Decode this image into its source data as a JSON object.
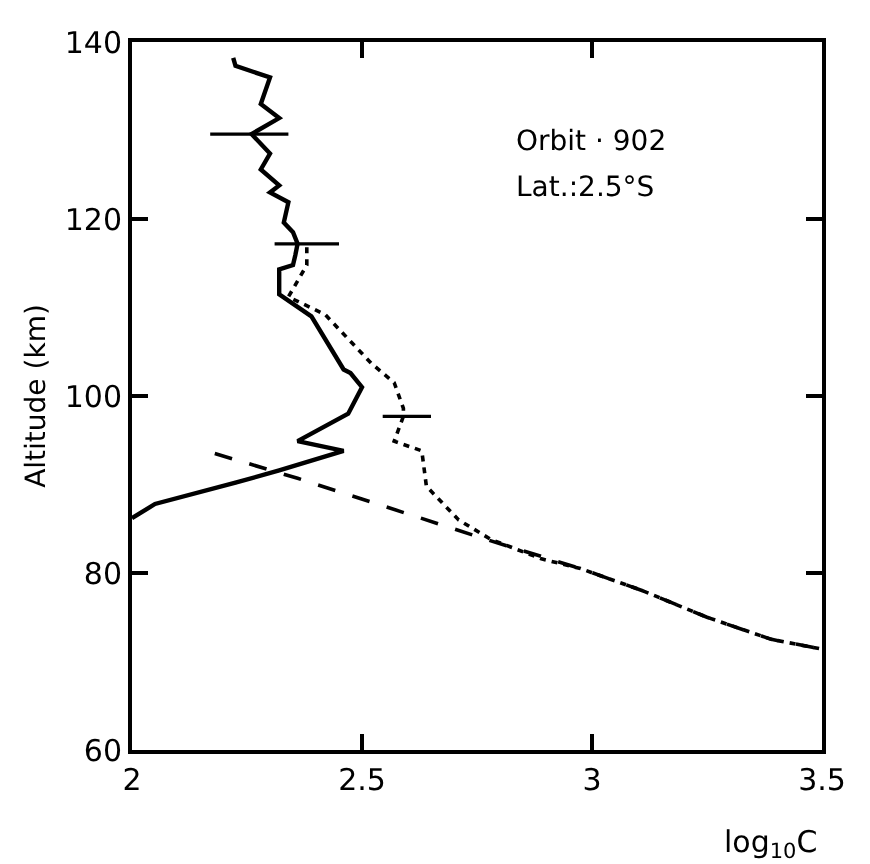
{
  "chart_data": {
    "type": "line",
    "xlabel": "log$_{10}$C",
    "ylabel": "Altitude (km)",
    "annotations": [
      "Orbit · 902",
      "Lat.:2.5°S"
    ],
    "xlim": [
      2,
      3.5
    ],
    "ylim": [
      60,
      140
    ],
    "xticks": [
      2,
      2.5,
      3,
      3.5
    ],
    "yticks": [
      60,
      80,
      100,
      120,
      140
    ],
    "series": [
      {
        "color": "#000000",
        "line_style": "solid",
        "x": [
          2.22,
          2.225,
          2.3,
          2.28,
          2.32,
          2.26,
          2.3,
          2.28,
          2.32,
          2.3,
          2.34,
          2.33,
          2.35,
          2.36,
          2.355,
          2.35,
          2.32,
          2.32,
          2.39,
          2.46,
          2.475,
          2.5,
          2.47,
          2.36,
          2.46,
          2.32,
          2.225,
          2.05,
          2.0
        ],
        "values": [
          138.2,
          137.3,
          136,
          133,
          131.4,
          129.6,
          127.4,
          125.6,
          123.8,
          123,
          121.9,
          119.6,
          118.5,
          117.2,
          115.9,
          114.8,
          114.3,
          111.5,
          109,
          103,
          102.6,
          101,
          98,
          94.9,
          93.8,
          91.6,
          90.2,
          87.8,
          86.2
        ],
        "xerrors": [
          null,
          null,
          null,
          null,
          null,
          [
            2.17,
            2.34
          ],
          null,
          null,
          null,
          null,
          null,
          null,
          null,
          [
            2.31,
            2.45
          ],
          null,
          null,
          null,
          null,
          null,
          null,
          null,
          null,
          null,
          null,
          null,
          null,
          null,
          null,
          null
        ]
      },
      {
        "color": "#000000",
        "line_style": "dotted",
        "x": [
          2.38,
          2.38,
          2.34,
          2.42,
          2.52,
          2.57,
          2.59,
          2.59,
          2.57,
          2.63,
          2.64,
          2.71,
          2.78,
          2.89,
          2.975,
          3.11,
          3.25,
          3.39,
          3.5
        ],
        "values": [
          116.8,
          114.8,
          111.2,
          109.2,
          103.7,
          101.5,
          98.6,
          97.7,
          94.9,
          93.8,
          89.8,
          86,
          83.8,
          81.6,
          80.5,
          78,
          75,
          72.5,
          71.4
        ],
        "xerrors": [
          null,
          null,
          null,
          null,
          null,
          null,
          null,
          [
            2.545,
            2.65
          ],
          null,
          null,
          null,
          null,
          null,
          null,
          null,
          null,
          null,
          null,
          null
        ]
      },
      {
        "color": "#000000",
        "line_style": "dashed",
        "x": [
          2.18,
          2.36,
          2.545,
          2.77,
          2.975,
          3.11,
          3.25,
          3.39,
          3.5
        ],
        "values": [
          93.5,
          90.7,
          87.6,
          83.8,
          80.5,
          78,
          75,
          72.5,
          71.4
        ]
      }
    ]
  }
}
